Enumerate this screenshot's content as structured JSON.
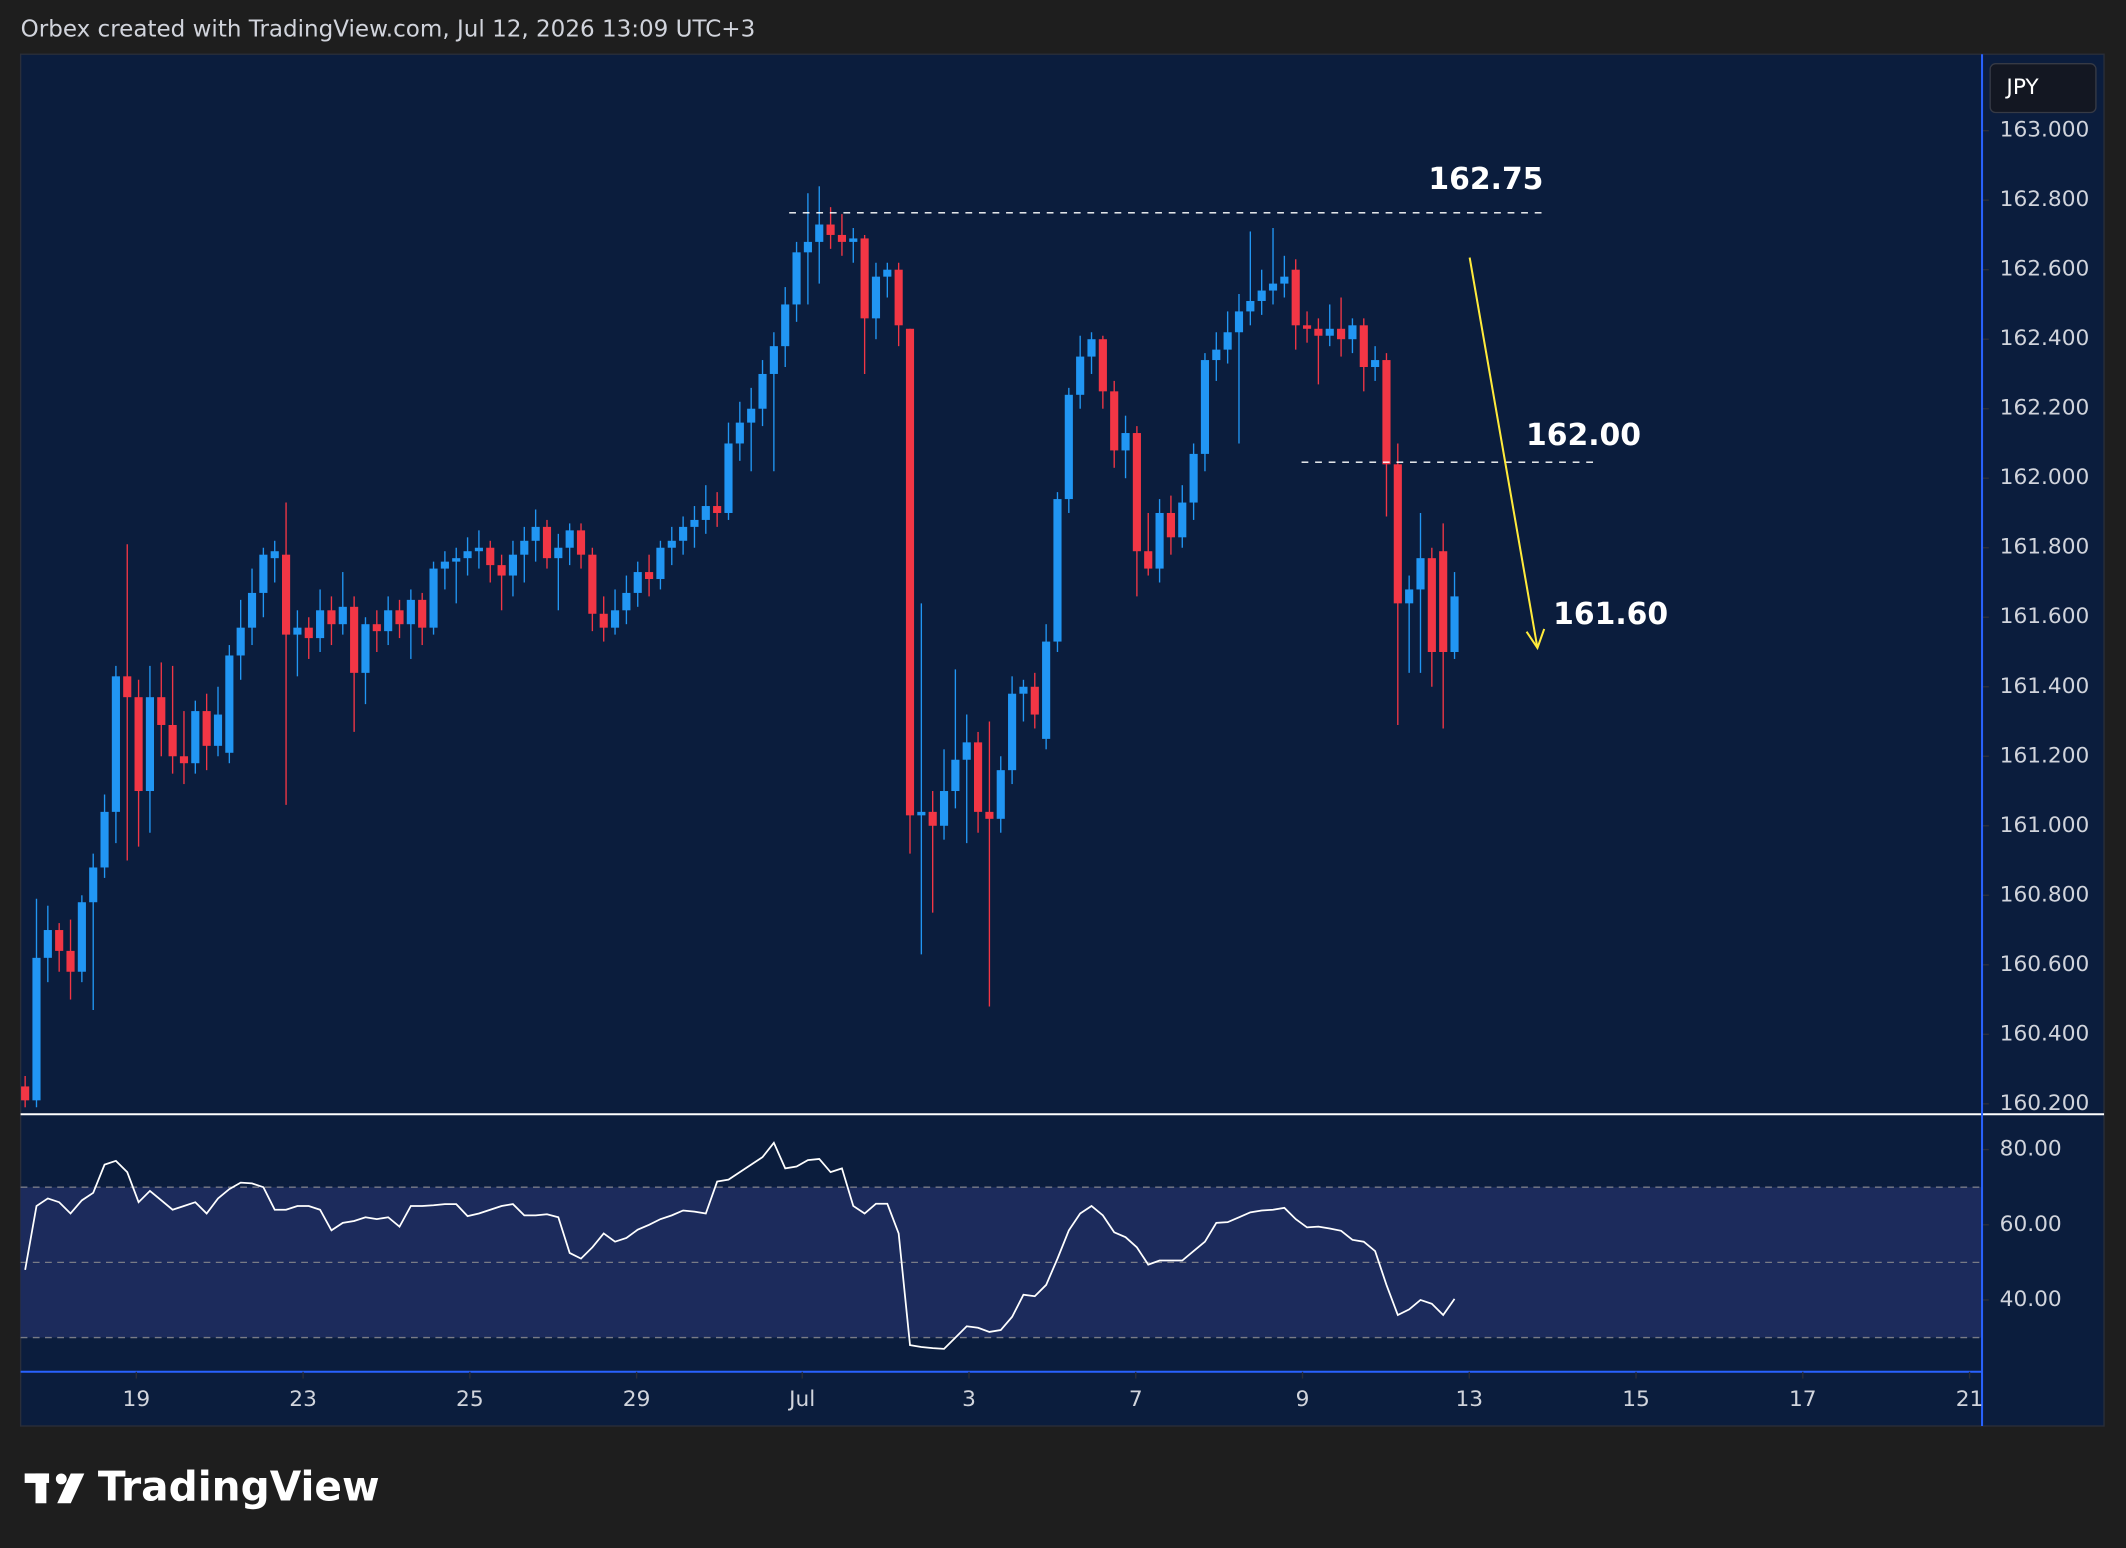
{
  "header": {
    "text": "Orbex created with TradingView.com, Jul 12, 2026 13:09 UTC+3"
  },
  "footer": {
    "logo": "TradingView"
  },
  "chart_data": [
    {
      "type": "candlestick",
      "currency": "JPY",
      "up_color": "#2196f3",
      "down_color": "#f23645",
      "xlim": [
        -0.4,
        172.5
      ],
      "ylim": [
        160.17,
        163.22
      ],
      "yticks": [
        {
          "value": 160.2,
          "label": "160.200"
        },
        {
          "value": 160.4,
          "label": "160.400"
        },
        {
          "value": 160.6,
          "label": "160.600"
        },
        {
          "value": 160.8,
          "label": "160.800"
        },
        {
          "value": 161.0,
          "label": "161.000"
        },
        {
          "value": 161.2,
          "label": "161.200"
        },
        {
          "value": 161.4,
          "label": "161.400"
        },
        {
          "value": 161.6,
          "label": "161.600"
        },
        {
          "value": 161.8,
          "label": "161.800"
        },
        {
          "value": 162.0,
          "label": "162.000"
        },
        {
          "value": 162.2,
          "label": "162.200"
        },
        {
          "value": 162.4,
          "label": "162.400"
        },
        {
          "value": 162.6,
          "label": "162.600"
        },
        {
          "value": 162.8,
          "label": "162.800"
        },
        {
          "value": 163.0,
          "label": "163.000"
        }
      ],
      "annotations": [
        "162.75",
        "162.00",
        "161.60"
      ],
      "open": [
        160.25,
        160.21,
        160.62,
        160.7,
        160.64,
        160.58,
        160.78,
        160.88,
        161.04,
        161.43,
        161.37,
        161.1,
        161.37,
        161.29,
        161.2,
        161.18,
        161.33,
        161.23,
        161.21,
        161.49,
        161.57,
        161.67,
        161.77,
        161.78,
        161.55,
        161.57,
        161.54,
        161.62,
        161.58,
        161.63,
        161.44,
        161.58,
        161.56,
        161.62,
        161.58,
        161.65,
        161.57,
        161.74,
        161.76,
        161.77,
        161.79,
        161.8,
        161.75,
        161.72,
        161.78,
        161.82,
        161.86,
        161.77,
        161.8,
        161.85,
        161.78,
        161.61,
        161.57,
        161.62,
        161.67,
        161.73,
        161.71,
        161.8,
        161.82,
        161.86,
        161.88,
        161.92,
        161.9,
        162.1,
        162.16,
        162.2,
        162.3,
        162.38,
        162.5,
        162.65,
        162.68,
        162.73,
        162.7,
        162.68,
        162.69,
        162.46,
        162.58,
        162.6,
        162.43,
        161.03,
        161.04,
        161.0,
        161.1,
        161.19,
        161.24,
        161.04,
        161.02,
        161.16,
        161.38,
        161.4,
        161.25,
        161.53,
        161.94,
        162.24,
        162.35,
        162.4,
        162.25,
        162.08,
        162.13,
        161.79,
        161.74,
        161.9,
        161.83,
        161.93,
        162.07,
        162.34,
        162.37,
        162.42,
        162.48,
        162.51,
        162.54,
        162.56,
        162.6,
        162.44,
        162.43,
        162.41,
        162.43,
        162.4,
        162.44,
        162.32,
        162.34,
        162.04,
        161.64,
        161.68,
        161.77,
        161.79,
        161.5
      ],
      "high": [
        160.28,
        160.79,
        160.77,
        160.72,
        160.73,
        160.8,
        160.92,
        161.09,
        161.46,
        161.81,
        161.42,
        161.46,
        161.47,
        161.46,
        161.33,
        161.36,
        161.38,
        161.4,
        161.52,
        161.65,
        161.74,
        161.8,
        161.82,
        161.93,
        161.62,
        161.6,
        161.68,
        161.66,
        161.73,
        161.66,
        161.6,
        161.62,
        161.66,
        161.65,
        161.68,
        161.67,
        161.76,
        161.79,
        161.8,
        161.83,
        161.85,
        161.82,
        161.78,
        161.82,
        161.86,
        161.91,
        161.88,
        161.84,
        161.87,
        161.87,
        161.8,
        161.66,
        161.68,
        161.72,
        161.76,
        161.78,
        161.82,
        161.86,
        161.89,
        161.92,
        161.98,
        161.96,
        162.16,
        162.22,
        162.26,
        162.34,
        162.42,
        162.55,
        162.68,
        162.82,
        162.84,
        162.78,
        162.76,
        162.72,
        162.7,
        162.62,
        162.62,
        162.62,
        162.43,
        161.64,
        161.1,
        161.22,
        161.45,
        161.32,
        161.27,
        161.3,
        161.2,
        161.43,
        161.42,
        161.44,
        161.58,
        161.96,
        162.26,
        162.41,
        162.42,
        162.41,
        162.28,
        162.18,
        162.15,
        161.9,
        161.94,
        161.95,
        161.98,
        162.1,
        162.36,
        162.42,
        162.48,
        162.53,
        162.71,
        162.6,
        162.72,
        162.64,
        162.63,
        162.48,
        162.46,
        162.5,
        162.52,
        162.46,
        162.46,
        162.38,
        162.36,
        162.1,
        161.72,
        161.9,
        161.8,
        161.87,
        161.73
      ],
      "low": [
        160.19,
        160.19,
        160.55,
        160.58,
        160.5,
        160.55,
        160.47,
        160.85,
        160.95,
        160.9,
        160.94,
        160.98,
        161.2,
        161.15,
        161.12,
        161.15,
        161.16,
        161.2,
        161.18,
        161.42,
        161.52,
        161.6,
        161.7,
        161.06,
        161.43,
        161.48,
        161.5,
        161.52,
        161.55,
        161.27,
        161.35,
        161.5,
        161.52,
        161.54,
        161.48,
        161.52,
        161.55,
        161.68,
        161.64,
        161.72,
        161.74,
        161.7,
        161.62,
        161.66,
        161.7,
        161.76,
        161.74,
        161.62,
        161.75,
        161.74,
        161.56,
        161.53,
        161.55,
        161.58,
        161.63,
        161.66,
        161.68,
        161.75,
        161.78,
        161.8,
        161.84,
        161.86,
        161.88,
        162.05,
        162.02,
        162.15,
        162.02,
        162.32,
        162.45,
        162.5,
        162.56,
        162.66,
        162.64,
        162.62,
        162.3,
        162.4,
        162.52,
        162.38,
        160.92,
        160.63,
        160.75,
        160.96,
        161.05,
        160.95,
        160.98,
        160.48,
        160.98,
        161.12,
        161.3,
        161.28,
        161.22,
        161.5,
        161.9,
        162.2,
        162.3,
        162.2,
        162.03,
        162.0,
        161.66,
        161.72,
        161.7,
        161.78,
        161.8,
        161.88,
        162.02,
        162.28,
        162.33,
        162.1,
        162.44,
        162.47,
        162.5,
        162.52,
        162.37,
        162.39,
        162.27,
        162.38,
        162.35,
        162.36,
        162.25,
        162.28,
        161.89,
        161.29,
        161.44,
        161.44,
        161.4,
        161.28,
        161.48
      ],
      "close": [
        160.21,
        160.62,
        160.7,
        160.64,
        160.58,
        160.78,
        160.88,
        161.04,
        161.43,
        161.37,
        161.1,
        161.37,
        161.29,
        161.2,
        161.18,
        161.33,
        161.23,
        161.32,
        161.49,
        161.57,
        161.67,
        161.78,
        161.79,
        161.55,
        161.57,
        161.54,
        161.62,
        161.58,
        161.63,
        161.44,
        161.58,
        161.56,
        161.62,
        161.58,
        161.65,
        161.57,
        161.74,
        161.76,
        161.77,
        161.79,
        161.8,
        161.75,
        161.72,
        161.78,
        161.82,
        161.86,
        161.77,
        161.8,
        161.85,
        161.78,
        161.61,
        161.57,
        161.62,
        161.67,
        161.73,
        161.71,
        161.8,
        161.82,
        161.86,
        161.88,
        161.92,
        161.9,
        162.1,
        162.16,
        162.2,
        162.3,
        162.38,
        162.5,
        162.65,
        162.68,
        162.73,
        162.7,
        162.68,
        162.69,
        162.46,
        162.58,
        162.6,
        162.44,
        161.03,
        161.04,
        161.0,
        161.1,
        161.19,
        161.24,
        161.04,
        161.02,
        161.16,
        161.38,
        161.4,
        161.32,
        161.53,
        161.94,
        162.24,
        162.35,
        162.4,
        162.25,
        162.08,
        162.13,
        161.79,
        161.74,
        161.9,
        161.83,
        161.93,
        162.07,
        162.34,
        162.37,
        162.42,
        162.48,
        162.51,
        162.54,
        162.56,
        162.58,
        162.44,
        162.43,
        162.41,
        162.43,
        162.4,
        162.44,
        162.32,
        162.34,
        162.04,
        161.64,
        161.68,
        161.77,
        161.5,
        161.5,
        161.66
      ]
    },
    {
      "type": "line",
      "xlim": [
        -0.4,
        172.5
      ],
      "xticks": [
        {
          "value": 9.8,
          "label": "19"
        },
        {
          "value": 24.5,
          "label": "23"
        },
        {
          "value": 39.2,
          "label": "25"
        },
        {
          "value": 53.9,
          "label": "29"
        },
        {
          "value": 68.5,
          "label": "Jul"
        },
        {
          "value": 83.2,
          "label": "3"
        },
        {
          "value": 97.9,
          "label": "7"
        },
        {
          "value": 112.6,
          "label": "9"
        },
        {
          "value": 127.3,
          "label": "13"
        },
        {
          "value": 142.0,
          "label": "15"
        },
        {
          "value": 156.7,
          "label": "17"
        },
        {
          "value": 171.4,
          "label": "21"
        }
      ],
      "ylim": [
        20.9,
        89.4
      ],
      "yticks": [
        {
          "value": 40,
          "label": "40.00"
        },
        {
          "value": 60,
          "label": "60.00"
        },
        {
          "value": 80,
          "label": "80.00"
        }
      ],
      "bands": [
        70,
        50,
        30
      ],
      "band_color": "#1c2b5c",
      "series": [
        {
          "color": "#ffffff",
          "values": [
            48,
            65,
            67,
            66,
            63,
            66.5,
            68.5,
            76,
            77,
            74,
            66,
            69,
            66.5,
            64,
            65,
            66,
            63,
            67,
            69.5,
            71.2,
            71,
            70,
            64,
            64,
            65,
            65,
            64,
            58.5,
            60.5,
            61,
            62,
            61.5,
            62,
            59.5,
            65,
            65,
            65.2,
            65.5,
            65.5,
            62.3,
            63,
            64,
            65,
            65.5,
            62.5,
            62.5,
            62.8,
            62,
            52.5,
            51,
            54,
            57.7,
            55.5,
            56.5,
            58.7,
            60,
            61.5,
            62.5,
            63.8,
            63.5,
            63,
            71.5,
            72,
            74,
            76,
            78,
            81.8,
            75,
            75.5,
            77.2,
            77.5,
            74,
            75,
            65,
            63,
            65.6,
            65.6,
            57.7,
            28,
            27.5,
            27.2,
            27,
            30,
            33,
            32.6,
            31.5,
            32,
            35.5,
            41.4,
            41,
            44,
            51,
            58.5,
            63,
            65,
            62.5,
            58,
            56.7,
            54,
            49.4,
            50.5,
            50.5,
            50.5,
            53,
            55.5,
            60.5,
            60.7,
            62,
            63.3,
            63.8,
            64,
            64.5,
            61.5,
            59.3,
            59.5,
            59,
            58.4,
            56,
            55.5,
            53,
            44,
            36,
            37.5,
            40,
            39,
            36,
            40.3
          ]
        }
      ]
    }
  ]
}
